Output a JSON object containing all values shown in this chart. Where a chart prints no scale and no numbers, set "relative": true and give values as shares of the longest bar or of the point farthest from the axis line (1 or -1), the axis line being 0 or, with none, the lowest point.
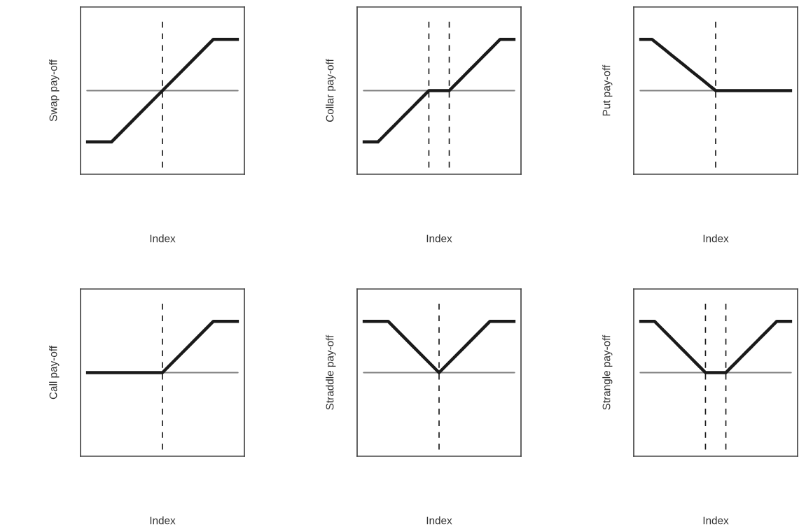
{
  "chart_data": [
    {
      "type": "line",
      "relative": true,
      "xlabel": "Index",
      "ylabel": "Swap pay-off",
      "categories": [
        null,
        null,
        null,
        null,
        null,
        null,
        null
      ],
      "series": [
        {
          "color": "#1a1a1a",
          "values": [
            -1,
            -1,
            -0.5,
            0,
            0.5,
            1,
            1
          ]
        }
      ],
      "ref_lines": [
        {
          "axis": "y",
          "value": 0,
          "color": "#808080",
          "line_style": "solid"
        }
      ]
    },
    {
      "type": "line",
      "relative": true,
      "xlabel": "Index",
      "ylabel": "Collar pay-off",
      "categories": [
        null,
        null,
        null,
        null,
        null,
        null,
        null,
        null,
        null,
        null,
        null,
        null,
        null,
        null,
        null,
        null,
        null,
        null,
        null,
        null,
        null,
        null,
        null,
        null,
        null,
        null,
        null,
        null,
        null,
        null,
        null
      ],
      "series": [
        {
          "color": "#1a1a1a",
          "values": [
            -1,
            -1,
            -1,
            -1,
            -0.9,
            -0.8,
            -0.7,
            -0.6,
            -0.5,
            -0.4,
            -0.3,
            -0.2,
            -0.1,
            0,
            0,
            0,
            0,
            0,
            0.1,
            0.2,
            0.3,
            0.4,
            0.5,
            0.6,
            0.7,
            0.8,
            0.9,
            1,
            1,
            1,
            1
          ]
        }
      ],
      "ref_lines": [
        {
          "axis": "y",
          "value": 0,
          "color": "#808080",
          "line_style": "solid"
        }
      ]
    },
    {
      "type": "line",
      "relative": true,
      "xlabel": "Index",
      "ylabel": "Put pay-off",
      "categories": [
        null,
        null,
        null,
        null,
        null,
        null,
        null,
        null,
        null,
        null,
        null,
        null,
        null,
        null,
        null,
        null,
        null,
        null,
        null,
        null,
        null,
        null,
        null,
        null,
        null
      ],
      "series": [
        {
          "color": "#1a1a1a",
          "values": [
            1,
            1,
            1,
            0.9,
            0.8,
            0.7,
            0.6,
            0.5,
            0.4,
            0.3,
            0.2,
            0.1,
            0,
            0,
            0,
            0,
            0,
            0,
            0,
            0,
            0,
            0,
            0,
            0,
            0
          ]
        }
      ],
      "ref_lines": [
        {
          "axis": "y",
          "value": 0,
          "color": "#808080",
          "line_style": "solid"
        }
      ]
    },
    {
      "type": "line",
      "relative": true,
      "xlabel": "Index",
      "ylabel": "Call pay-off",
      "categories": [
        null,
        null,
        null,
        null,
        null,
        null,
        null
      ],
      "series": [
        {
          "color": "#1a1a1a",
          "values": [
            0,
            0,
            0,
            0,
            0.5,
            1,
            1
          ]
        }
      ],
      "ref_lines": [
        {
          "axis": "y",
          "value": 0,
          "color": "#808080",
          "line_style": "solid"
        }
      ]
    },
    {
      "type": "line",
      "relative": true,
      "xlabel": "Index",
      "ylabel": "Straddle pay-off",
      "categories": [
        null,
        null,
        null,
        null,
        null,
        null,
        null
      ],
      "series": [
        {
          "color": "#1a1a1a",
          "values": [
            1,
            1,
            0.5,
            0,
            0.5,
            1,
            1
          ]
        }
      ],
      "ref_lines": [
        {
          "axis": "y",
          "value": 0,
          "color": "#808080",
          "line_style": "solid"
        }
      ]
    },
    {
      "type": "line",
      "relative": true,
      "xlabel": "Index",
      "ylabel": "Strangle pay-off",
      "categories": [
        null,
        null,
        null,
        null,
        null,
        null,
        null,
        null,
        null,
        null,
        null,
        null,
        null,
        null,
        null,
        null,
        null,
        null,
        null,
        null,
        null,
        null,
        null,
        null,
        null,
        null,
        null,
        null,
        null,
        null,
        null
      ],
      "series": [
        {
          "color": "#1a1a1a",
          "values": [
            1,
            1,
            1,
            1,
            0.9,
            0.8,
            0.7,
            0.6,
            0.5,
            0.4,
            0.3,
            0.2,
            0.1,
            0,
            0,
            0,
            0,
            0,
            0.1,
            0.2,
            0.3,
            0.4,
            0.5,
            0.6,
            0.7,
            0.8,
            0.9,
            1,
            1,
            1,
            1
          ]
        }
      ],
      "ref_lines": [
        {
          "axis": "y",
          "value": 0,
          "color": "#808080",
          "line_style": "solid"
        }
      ]
    }
  ]
}
